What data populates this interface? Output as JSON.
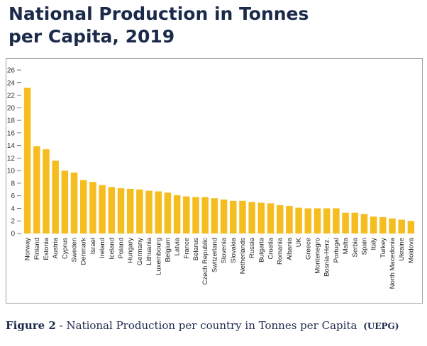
{
  "title_lines": [
    "National Production in Tonnes",
    "per Capita, 2019"
  ],
  "caption": {
    "figure": "Figure 2",
    "text": "- National Production per country in Tonnes per Capita",
    "source": "(UEPG)"
  },
  "colors": {
    "bar": "#f5bd1f",
    "title": "#1b2a4a",
    "axis": "#555555"
  },
  "chart_data": {
    "type": "bar",
    "title": "",
    "xlabel": "",
    "ylabel": "",
    "ylim": [
      0,
      26
    ],
    "yticks": [
      0,
      2,
      4,
      6,
      8,
      10,
      12,
      14,
      16,
      18,
      20,
      22,
      24,
      26
    ],
    "grid": false,
    "categories": [
      "Norway",
      "Finland",
      "Estonia",
      "Austria",
      "Cyprus",
      "Sweden",
      "Denmark",
      "Israel",
      "Ireland",
      "Iceland",
      "Poland",
      "Hungary",
      "Germany",
      "Lithuania",
      "Luxembourg",
      "Belgium",
      "Latvia",
      "France",
      "Belarus",
      "Czech Republic",
      "Switzerland",
      "Slovenia",
      "Slovakia",
      "Netherlands",
      "Russia",
      "Bulgaria",
      "Croatia",
      "Romania",
      "Albania",
      "UK",
      "Greece",
      "Montenegro",
      "Bosnia-Herz.",
      "Portugal",
      "Malta",
      "Serbia",
      "Spain",
      "Italy",
      "Turkey",
      "North Macedonia",
      "Ukraine",
      "Moldova"
    ],
    "values": [
      23.2,
      13.9,
      13.4,
      11.6,
      10.0,
      9.7,
      8.5,
      8.2,
      7.7,
      7.4,
      7.2,
      7.1,
      7.0,
      6.8,
      6.7,
      6.5,
      6.1,
      5.9,
      5.8,
      5.8,
      5.6,
      5.4,
      5.2,
      5.2,
      5.0,
      4.9,
      4.8,
      4.5,
      4.4,
      4.1,
      4.0,
      4.0,
      4.0,
      4.0,
      3.3,
      3.3,
      3.1,
      2.7,
      2.6,
      2.4,
      2.2,
      2.0
    ]
  }
}
